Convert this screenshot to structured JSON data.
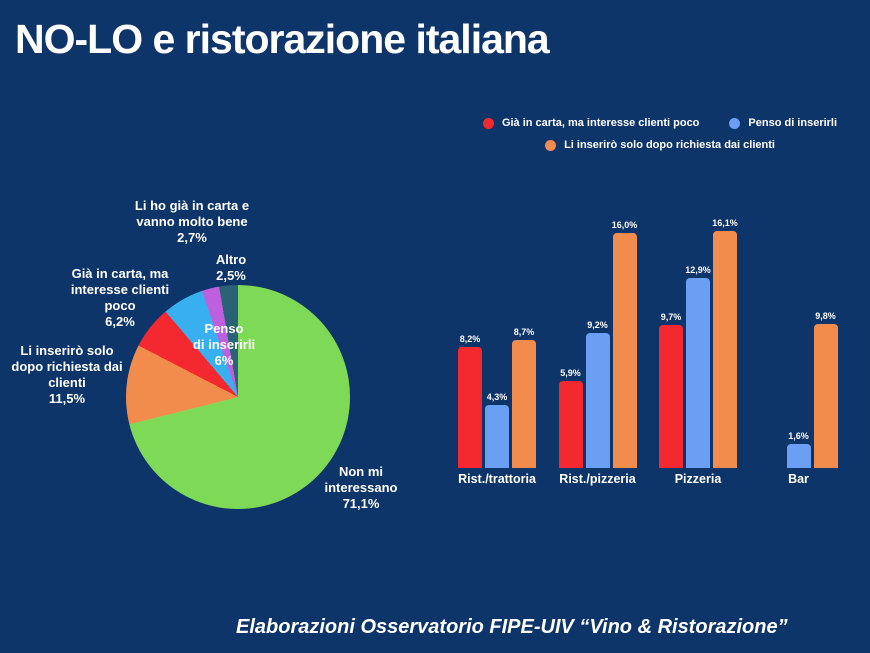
{
  "title": "NO-LO e ristorazione italiana",
  "footer": "Elaborazioni Osservatorio FIPE-UIV “Vino & Ristorazione”",
  "colors": {
    "background": "#0E356A",
    "red": "#F4292F",
    "bar_blue": "#6B9FF3",
    "orange": "#F18C4C",
    "green": "#7ED957",
    "sky_blue": "#38B0F0",
    "purple": "#BE5FDE",
    "teal": "#2A6375",
    "text": "#FFFFFF"
  },
  "legend": {
    "items": [
      {
        "label": "Già in carta, ma interesse clienti poco",
        "color": "#F4292F"
      },
      {
        "label": "Penso di inserirli",
        "color": "#6B9FF3"
      },
      {
        "label": "Li inserirò solo dopo richiesta dai clienti",
        "color": "#F18C4C"
      }
    ]
  },
  "chart_data": [
    {
      "type": "pie",
      "start_angle_deg": 0,
      "direction": "clockwise",
      "slices": [
        {
          "label": "Non mi interessano",
          "value": 71.1,
          "display": "71,1%",
          "color": "#7ED957"
        },
        {
          "label": "Li inserirò solo dopo richiesta dai clienti",
          "value": 11.5,
          "display": "11,5%",
          "color": "#F18C4C"
        },
        {
          "label": "Già in carta, ma interesse clienti poco",
          "value": 6.2,
          "display": "6,2%",
          "color": "#F4292F"
        },
        {
          "label": "Penso di inserirli",
          "value": 6.0,
          "display": "6%",
          "color": "#38B0F0"
        },
        {
          "label": "Altro",
          "value": 2.5,
          "display": "2,5%",
          "color": "#BE5FDE"
        },
        {
          "label": "Li ho già in carta e vanno molto bene",
          "value": 2.7,
          "display": "2,7%",
          "color": "#2A6375"
        }
      ],
      "labels": {
        "li_ho_gia": "Li ho già in carta e\nvanno molto bene\n2,7%",
        "altro": "Altro\n2,5%",
        "gia_in_carta": "Già in carta, ma\ninteresse clienti\npoco\n6,2%",
        "penso": "Penso\ndi inserirli\n6%",
        "li_inseriro": "Li inserirò solo\ndopo richiesta dai\nclienti\n11,5%",
        "non_mi_interessano": "Non mi\ninteressano\n71,1%"
      }
    },
    {
      "type": "bar",
      "categories": [
        "Rist./trattoria",
        "Rist./pizzeria",
        "Pizzeria",
        "Bar"
      ],
      "series": [
        {
          "name": "Già in carta, ma interesse clienti poco",
          "color": "#F4292F",
          "values": [
            8.2,
            5.9,
            9.7,
            null
          ],
          "display": [
            "8,2%",
            "5,9%",
            "9,7%",
            null
          ]
        },
        {
          "name": "Penso di inserirli",
          "color": "#6B9FF3",
          "values": [
            4.3,
            9.2,
            12.9,
            1.6
          ],
          "display": [
            "4,3%",
            "9,2%",
            "12,9%",
            "1,6%"
          ]
        },
        {
          "name": "Li inserirò solo dopo richiesta dai clienti",
          "color": "#F18C4C",
          "values": [
            8.7,
            16.0,
            16.1,
            9.8
          ],
          "display": [
            "8,7%",
            "16,0%",
            "16,1%",
            "9,8%"
          ]
        }
      ],
      "ylim": [
        0,
        17
      ],
      "value_labels": true,
      "grid": false,
      "legend_position": "top-right"
    }
  ]
}
